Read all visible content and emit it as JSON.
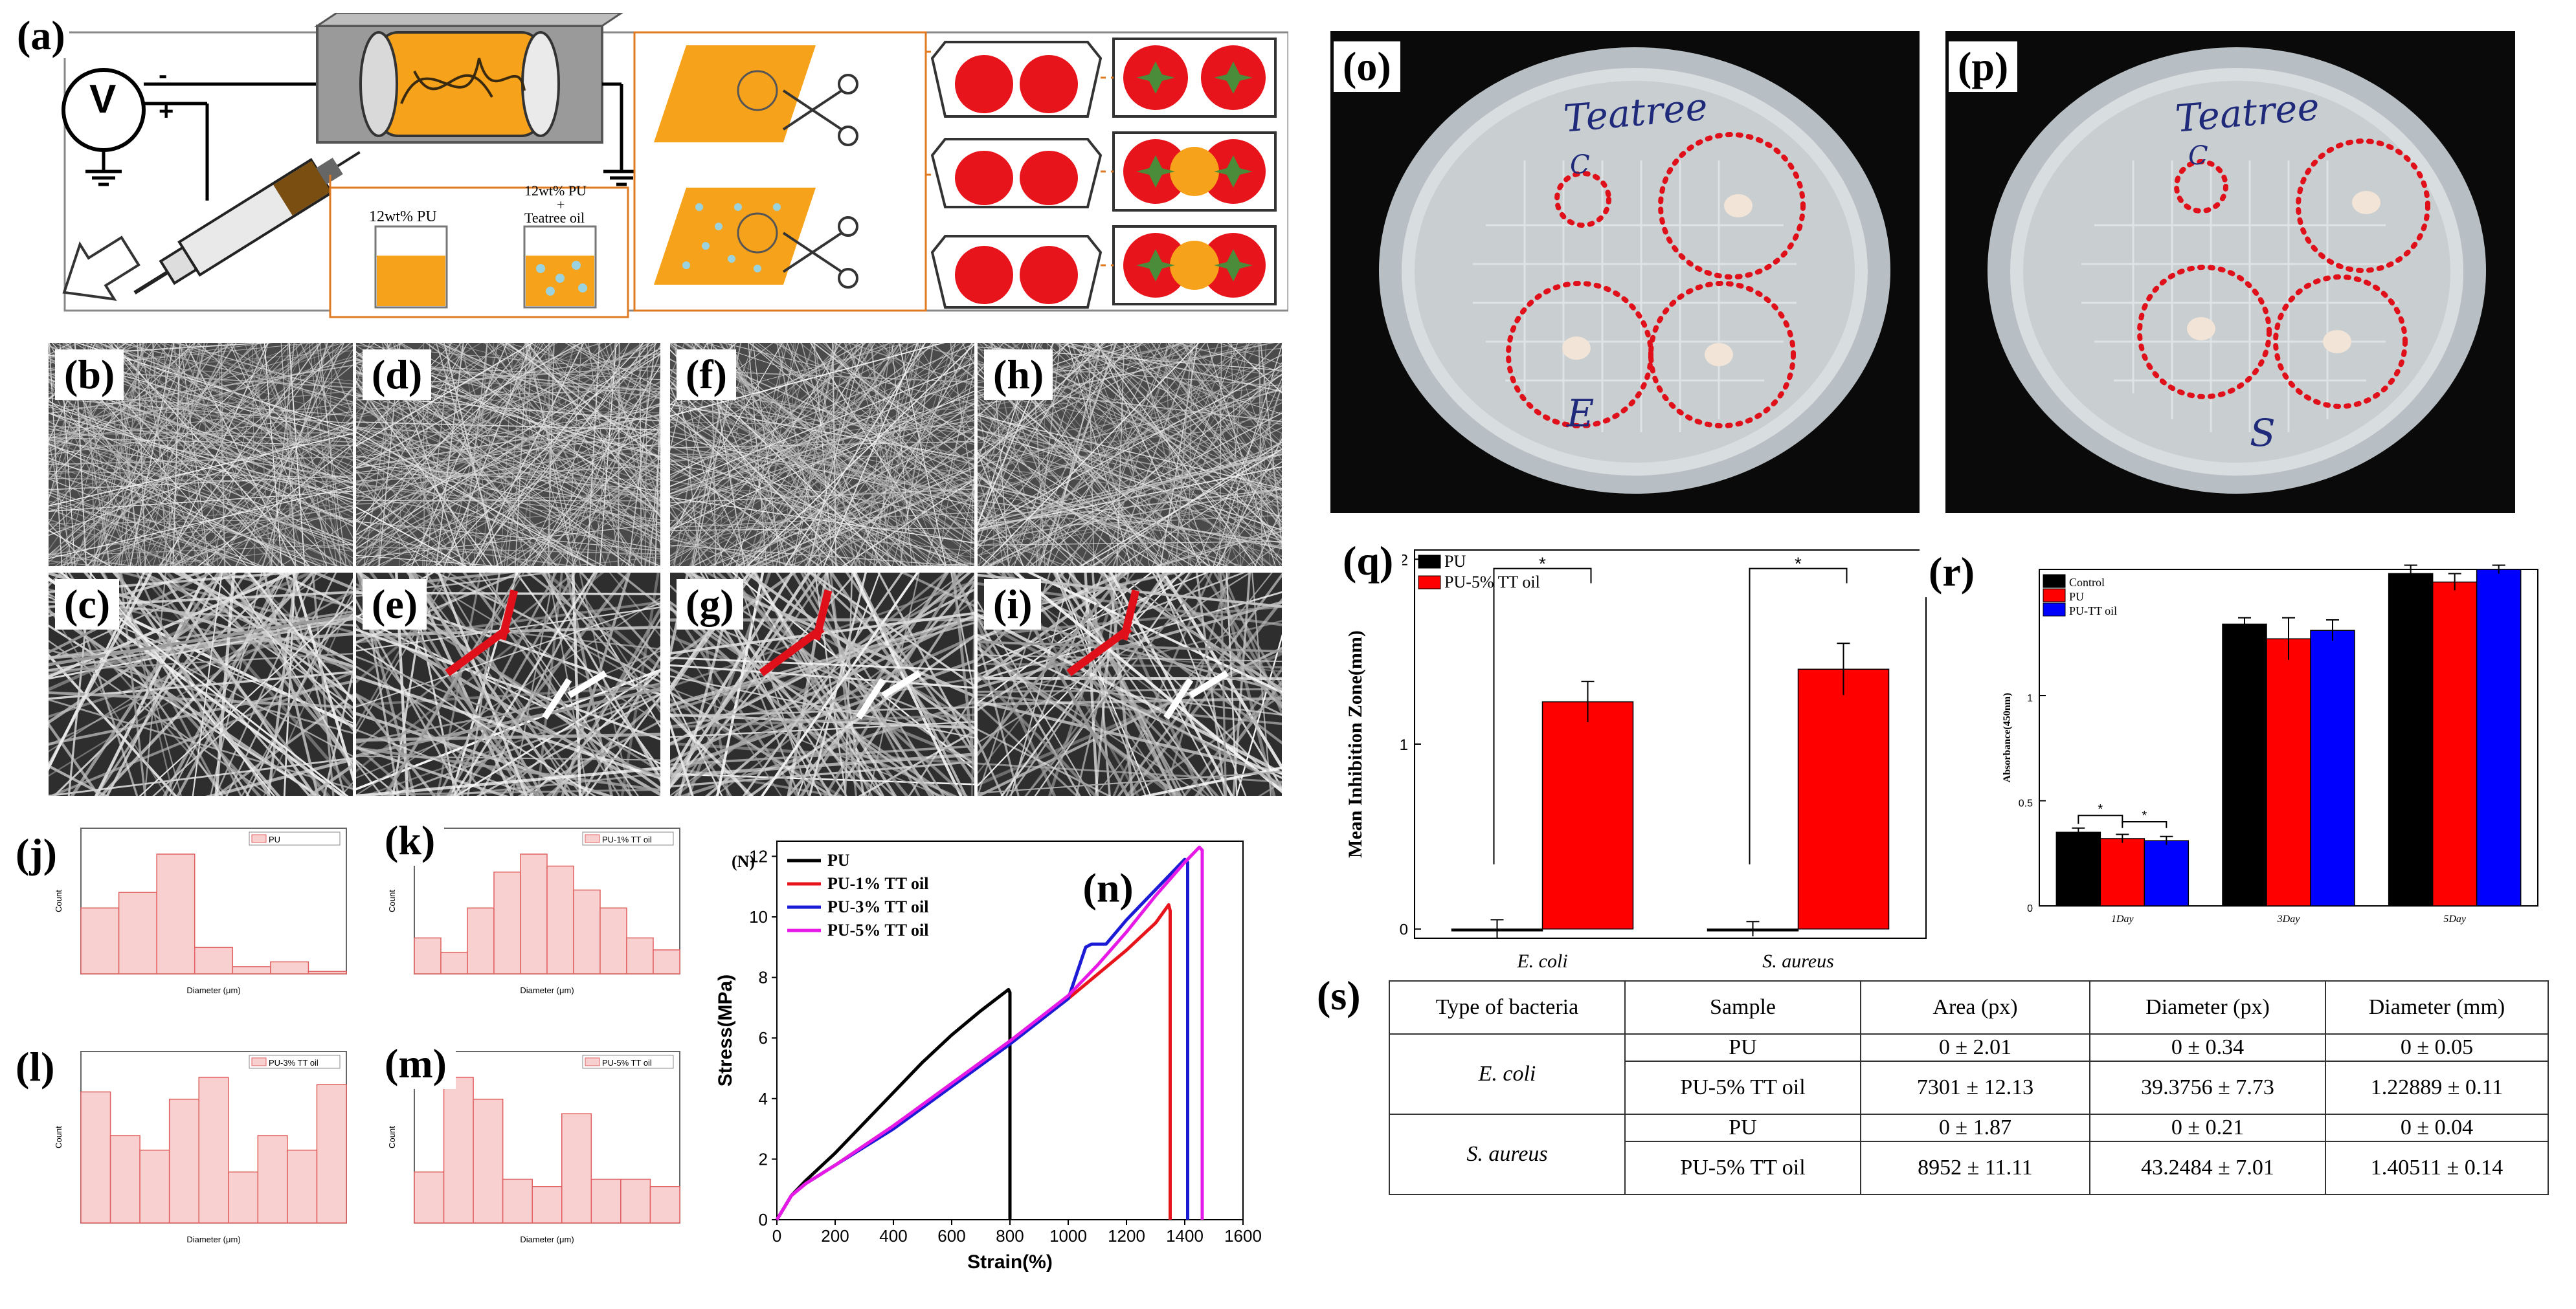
{
  "panels": {
    "a": "(a)",
    "b": "(b)",
    "c": "(c)",
    "d": "(d)",
    "e": "(e)",
    "f": "(f)",
    "g": "(g)",
    "h": "(h)",
    "i": "(i)",
    "j": "(j)",
    "k": "(k)",
    "l": "(l)",
    "m": "(m)",
    "n": "(n)",
    "o": "(o)",
    "p": "(p)",
    "q": "(q)",
    "r": "(r)",
    "s": "(s)"
  },
  "schematic": {
    "voltage_symbol": "V",
    "minus": "-",
    "plus": "+",
    "beaker1": "12wt% PU",
    "beaker2_line1": "12wt% PU",
    "beaker2_line2": "+",
    "beaker2_line3": "Teatree oil"
  },
  "petri": {
    "o_label": "Teatree",
    "o_mark_c": "C",
    "o_mark_bottom": "E",
    "p_label": "Teatree",
    "p_mark_c": "C",
    "p_mark_bottom": "S"
  },
  "histograms": {
    "j_legend": "PU",
    "k_legend": "PU-1% TT oil",
    "l_legend": "PU-3% TT oil",
    "m_legend": "PU-5% TT oil",
    "xlabel": "Diameter (μm)",
    "ylabel": "Count"
  },
  "chart_data": [
    {
      "id": "n",
      "type": "line",
      "xlabel": "Strain(%)",
      "ylabel": "Stress(MPa)",
      "yunit_note": "(N)",
      "xlim": [
        0,
        1600
      ],
      "ylim": [
        0,
        12.5
      ],
      "xticks": [
        0,
        200,
        400,
        600,
        800,
        1000,
        1200,
        1400,
        1600
      ],
      "yticks": [
        0,
        2,
        4,
        6,
        8,
        10,
        12
      ],
      "legend_position": "top-left",
      "series": [
        {
          "name": "PU",
          "color": "#000000",
          "x": [
            0,
            50,
            100,
            200,
            300,
            400,
            500,
            600,
            700,
            795,
            800,
            800
          ],
          "y": [
            0,
            0.8,
            1.3,
            2.2,
            3.2,
            4.2,
            5.2,
            6.1,
            6.9,
            7.6,
            7.5,
            0
          ]
        },
        {
          "name": "PU-1% TT oil",
          "color": "#e8141b",
          "x": [
            0,
            50,
            100,
            200,
            400,
            600,
            800,
            1000,
            1100,
            1200,
            1300,
            1345,
            1350,
            1350
          ],
          "y": [
            0,
            0.8,
            1.2,
            1.8,
            3.1,
            4.5,
            5.9,
            7.3,
            8.1,
            8.9,
            9.8,
            10.4,
            10.2,
            0
          ]
        },
        {
          "name": "PU-3% TT oil",
          "color": "#1b1bd6",
          "x": [
            0,
            50,
            100,
            200,
            400,
            600,
            800,
            1000,
            1060,
            1080,
            1130,
            1200,
            1300,
            1400,
            1410,
            1410
          ],
          "y": [
            0,
            0.8,
            1.2,
            1.8,
            3.0,
            4.4,
            5.8,
            7.3,
            9.0,
            9.1,
            9.1,
            9.9,
            10.9,
            11.9,
            11.8,
            0
          ]
        },
        {
          "name": "PU-5% TT oil",
          "color": "#e619e6",
          "x": [
            0,
            50,
            100,
            200,
            400,
            600,
            800,
            1000,
            1100,
            1200,
            1300,
            1400,
            1450,
            1460,
            1460
          ],
          "y": [
            0,
            0.8,
            1.2,
            1.8,
            3.1,
            4.5,
            5.9,
            7.4,
            8.4,
            9.5,
            10.7,
            11.8,
            12.3,
            12.2,
            0
          ]
        }
      ]
    },
    {
      "id": "q",
      "type": "bar",
      "ylabel": "Mean Inhibition Zone(mm)",
      "categories": [
        "E. coli",
        "S. aureus"
      ],
      "ylim": [
        -0.05,
        2.05
      ],
      "yticks": [
        0,
        1,
        2
      ],
      "legend_position": "top-left",
      "significance": "*",
      "series": [
        {
          "name": "PU",
          "color": "#000000",
          "values": [
            0,
            0
          ],
          "errors": [
            0.05,
            0.04
          ]
        },
        {
          "name": "PU-5% TT oil",
          "color": "#ff0000",
          "values": [
            1.22889,
            1.40511
          ],
          "errors": [
            0.11,
            0.14
          ]
        }
      ]
    },
    {
      "id": "r",
      "type": "bar",
      "ylabel": "Absorbance(450nm)",
      "categories": [
        "1Day",
        "3Day",
        "5Day"
      ],
      "ylim": [
        0,
        1.6
      ],
      "yticks": [
        0.0,
        0.5,
        1.0
      ],
      "legend_position": "top-left",
      "significance": "*",
      "series": [
        {
          "name": "Control",
          "color": "#000000",
          "values": [
            0.35,
            1.34,
            1.58
          ],
          "errors": [
            0.02,
            0.03,
            0.04
          ]
        },
        {
          "name": "PU",
          "color": "#ff0000",
          "values": [
            0.32,
            1.27,
            1.54
          ],
          "errors": [
            0.02,
            0.1,
            0.04
          ]
        },
        {
          "name": "PU-TT oil",
          "color": "#0000ff",
          "values": [
            0.31,
            1.31,
            1.6
          ],
          "errors": [
            0.02,
            0.05,
            0.02
          ]
        }
      ]
    }
  ],
  "table": {
    "headers": [
      "Type of bacteria",
      "Sample",
      "Area (px)",
      "Diameter (px)",
      "Diameter (mm)"
    ],
    "groups": [
      {
        "bacteria": "E. coli",
        "rows": [
          [
            "PU",
            "0 ± 2.01",
            "0 ± 0.34",
            "0 ± 0.05"
          ],
          [
            "PU-5% TT oil",
            "7301 ± 12.13",
            "39.3756 ± 7.73",
            "1.22889 ± 0.11"
          ]
        ]
      },
      {
        "bacteria": "S. aureus",
        "rows": [
          [
            "PU",
            "0 ± 1.87",
            "0 ± 0.21",
            "0 ± 0.04"
          ],
          [
            "PU-5% TT oil",
            "8952 ± 11.11",
            "43.2484 ± 7.01",
            "1.40511 ± 0.14"
          ]
        ]
      }
    ]
  }
}
